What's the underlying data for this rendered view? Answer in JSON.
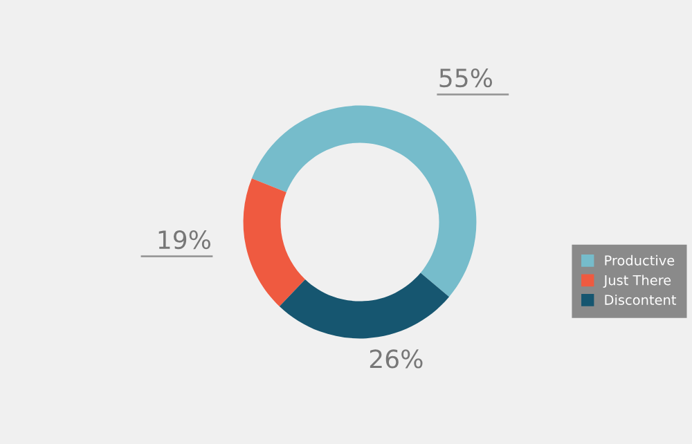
{
  "chart_data": {
    "type": "donut",
    "categories": [
      "Productive",
      "Just There",
      "Discontent"
    ],
    "values": [
      55,
      19,
      26
    ],
    "colors": [
      "#76bccb",
      "#ef5a40",
      "#165670"
    ],
    "value_labels": [
      "55%",
      "19%",
      "26%"
    ],
    "legend": "right"
  }
}
